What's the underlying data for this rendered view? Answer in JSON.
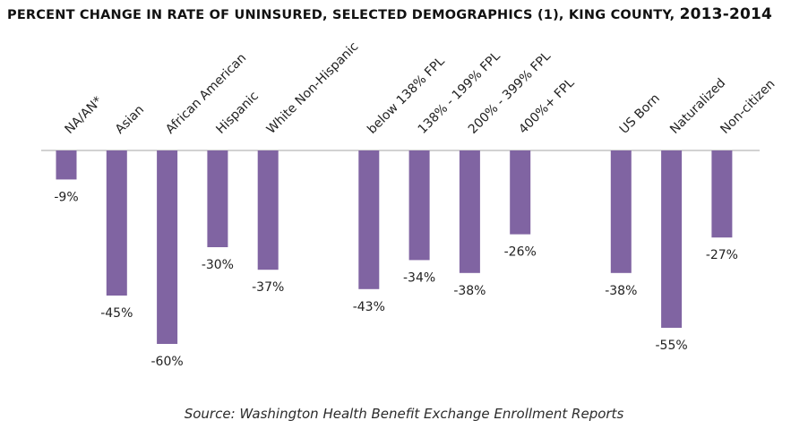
{
  "title": {
    "main": "PERCENT CHANGE IN RATE OF UNINSURED, SELECTED DEMOGRAPHICS (1), KING COUNTY, ",
    "years": "2013-2014"
  },
  "source": "Source: Washington Health Benefit Exchange Enrollment Reports",
  "colors": {
    "bar": "#8064a2",
    "axis": "#a6a6a6",
    "text": "#222222"
  },
  "chart_data": {
    "type": "bar",
    "title": "PERCENT CHANGE IN RATE OF UNINSURED, SELECTED DEMOGRAPHICS (1), KING COUNTY, 2013-2014",
    "categories": [
      "NA/AN*",
      "Asian",
      "African American",
      "Hispanic",
      "White Non-Hispanic",
      "",
      "below 138% FPL",
      "138% - 199% FPL",
      "200% - 399% FPL",
      "400%+ FPL",
      "",
      "US Born",
      "Naturalized",
      "Non-citizen"
    ],
    "values": [
      -9,
      -45,
      -60,
      -30,
      -37,
      null,
      -43,
      -34,
      -38,
      -26,
      null,
      -38,
      -55,
      -27
    ],
    "data_labels": [
      "-9%",
      "-45%",
      "-60%",
      "-30%",
      "-37%",
      "",
      "-43%",
      "-34%",
      "-38%",
      "-26%",
      "",
      "-38%",
      "-55%",
      "-27%"
    ],
    "ylim": [
      -60,
      0
    ],
    "grid": false,
    "legend": "none",
    "xlabel": "",
    "ylabel": ""
  }
}
